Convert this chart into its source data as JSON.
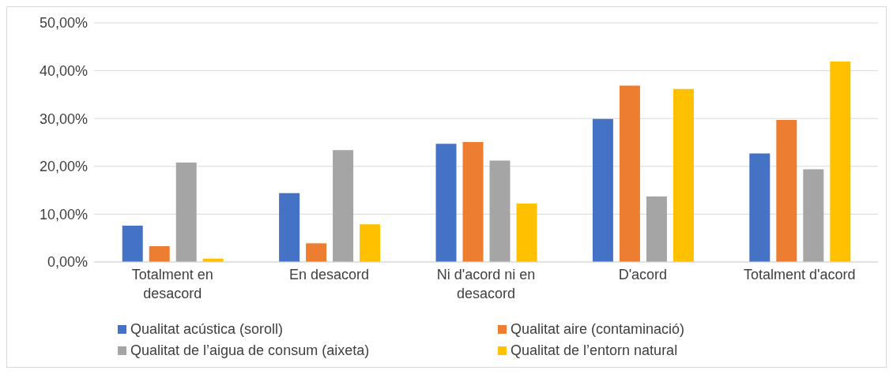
{
  "chart_data": {
    "type": "bar",
    "categories": [
      "Totalment en desacord",
      "En desacord",
      "Ni d'acord ni en desacord",
      "D'acord",
      "Totalment d'acord"
    ],
    "series": [
      {
        "name": "Qualitat acústica (soroll)",
        "color": "#4472c4",
        "values": [
          7.6,
          14.4,
          24.7,
          29.9,
          22.7
        ]
      },
      {
        "name": "Qualitat aire (contaminació)",
        "color": "#ed7d31",
        "values": [
          3.3,
          3.9,
          25.1,
          36.9,
          29.7
        ]
      },
      {
        "name": "Qualitat de l’aigua de consum (aixeta)",
        "color": "#a5a5a5",
        "values": [
          20.8,
          23.4,
          21.2,
          13.7,
          19.4
        ]
      },
      {
        "name": "Qualitat de l’entorn natural",
        "color": "#ffc000",
        "values": [
          0.7,
          7.9,
          12.2,
          36.2,
          41.9
        ]
      }
    ],
    "ylim": [
      0,
      50
    ],
    "yticks": [
      {
        "value": 0,
        "label": "0,00%"
      },
      {
        "value": 10,
        "label": "10,00%"
      },
      {
        "value": 20,
        "label": "20,00%"
      },
      {
        "value": 30,
        "label": "30,00%"
      },
      {
        "value": 40,
        "label": "40,00%"
      },
      {
        "value": 50,
        "label": "50,00%"
      }
    ],
    "grid": "y",
    "legend": "bottom"
  }
}
